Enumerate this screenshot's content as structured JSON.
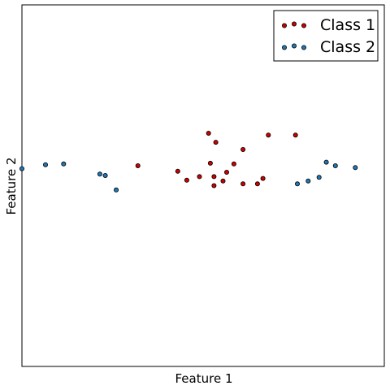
{
  "chart_data": {
    "type": "scatter",
    "title": "",
    "xlabel": "Feature 1",
    "ylabel": "Feature 2",
    "xlim": [
      0,
      100
    ],
    "ylim": [
      -50,
      50
    ],
    "grid": false,
    "ticks_visible": false,
    "legend": {
      "placement": "upper-right",
      "marker_count": 3
    },
    "series": [
      {
        "name": "Class 1",
        "color": "#cc0000",
        "points": [
          [
            32,
            5.5
          ],
          [
            43,
            4
          ],
          [
            45.5,
            1.5
          ],
          [
            49,
            2.5
          ],
          [
            51.5,
            14.5
          ],
          [
            52,
            6.2
          ],
          [
            53,
            0
          ],
          [
            53.5,
            12
          ],
          [
            53,
            2.5
          ],
          [
            55.5,
            1.3
          ],
          [
            56.5,
            3.7
          ],
          [
            58.5,
            6
          ],
          [
            61,
            0.5
          ],
          [
            61,
            10
          ],
          [
            65,
            0.5
          ],
          [
            66.5,
            2
          ],
          [
            68,
            14
          ],
          [
            75.5,
            14
          ]
        ]
      },
      {
        "name": "Class 2",
        "color": "#1f77b4",
        "points": [
          [
            0,
            4.7
          ],
          [
            6.5,
            5.8
          ],
          [
            11.5,
            6
          ],
          [
            21.5,
            3.2
          ],
          [
            23,
            2.8
          ],
          [
            26,
            -1.2
          ],
          [
            76,
            0.5
          ],
          [
            79,
            1.3
          ],
          [
            82,
            2.3
          ],
          [
            84,
            6.5
          ],
          [
            86.5,
            5.5
          ],
          [
            92,
            5
          ]
        ]
      }
    ]
  }
}
